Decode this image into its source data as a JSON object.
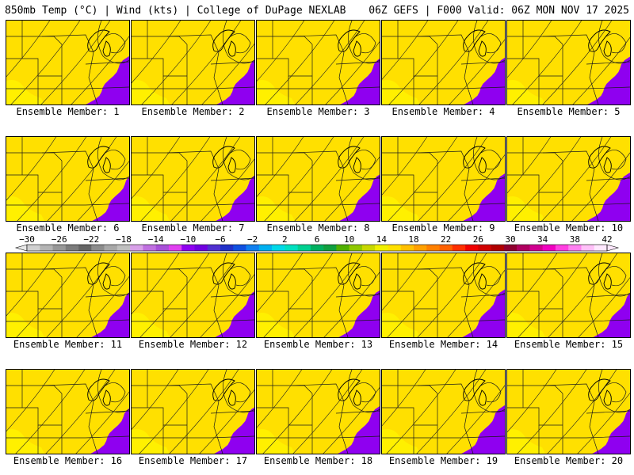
{
  "header": {
    "left": "850mb Temp (°C) | Wind (kts) | College of DuPage NEXLAB",
    "right": "06Z GEFS | F000 Valid: 06Z MON NOV 17 2025"
  },
  "panels": [
    {
      "label": "Ensemble Member: 1"
    },
    {
      "label": "Ensemble Member: 2"
    },
    {
      "label": "Ensemble Member: 3"
    },
    {
      "label": "Ensemble Member: 4"
    },
    {
      "label": "Ensemble Member: 5"
    },
    {
      "label": "Ensemble Member: 6"
    },
    {
      "label": "Ensemble Member: 7"
    },
    {
      "label": "Ensemble Member: 8"
    },
    {
      "label": "Ensemble Member: 9"
    },
    {
      "label": "Ensemble Member: 10"
    },
    {
      "label": "Ensemble Member: 11"
    },
    {
      "label": "Ensemble Member: 12"
    },
    {
      "label": "Ensemble Member: 13"
    },
    {
      "label": "Ensemble Member: 14"
    },
    {
      "label": "Ensemble Member: 15"
    },
    {
      "label": "Ensemble Member: 16"
    },
    {
      "label": "Ensemble Member: 17"
    },
    {
      "label": "Ensemble Member: 18"
    },
    {
      "label": "Ensemble Member: 19"
    },
    {
      "label": "Ensemble Member: 20"
    }
  ],
  "colorbar": {
    "labels": [
      "−30",
      "−26",
      "−22",
      "−18",
      "−14",
      "−10",
      "−6",
      "−2",
      "2",
      "6",
      "10",
      "14",
      "18",
      "22",
      "26",
      "30",
      "34",
      "38",
      "42"
    ],
    "colors": [
      "#d0d0d0",
      "#b4b4b4",
      "#989898",
      "#7c7c7c",
      "#666666",
      "#8c8c8c",
      "#a8a8a8",
      "#c0c0c0",
      "#d8a0e8",
      "#c070e0",
      "#a850d8",
      "#e040f0",
      "#9000f0",
      "#7000e0",
      "#5030d0",
      "#2030c8",
      "#1050e0",
      "#1080f0",
      "#00b0f0",
      "#00d8e8",
      "#00e0c0",
      "#00d090",
      "#00b060",
      "#10a040",
      "#50b000",
      "#90c800",
      "#c8d800",
      "#f0f000",
      "#ffe000",
      "#ffc000",
      "#ffa000",
      "#ff8000",
      "#ff6000",
      "#ff3000",
      "#f00000",
      "#d00000",
      "#b00000",
      "#900030",
      "#b00060",
      "#d00090",
      "#f000c0",
      "#ff40e0",
      "#ff80f0",
      "#ffc0f8",
      "#ffe8ff"
    ]
  },
  "map_colors": [
    "#8f00f0",
    "#6c10e8",
    "#3a30d8",
    "#1858e8",
    "#0a8cf0",
    "#00bce8",
    "#00dcd8",
    "#00d8a8",
    "#00c478",
    "#10a84c",
    "#4eb01c",
    "#a2c800",
    "#d8e000",
    "#f4f000",
    "#ffe000"
  ]
}
